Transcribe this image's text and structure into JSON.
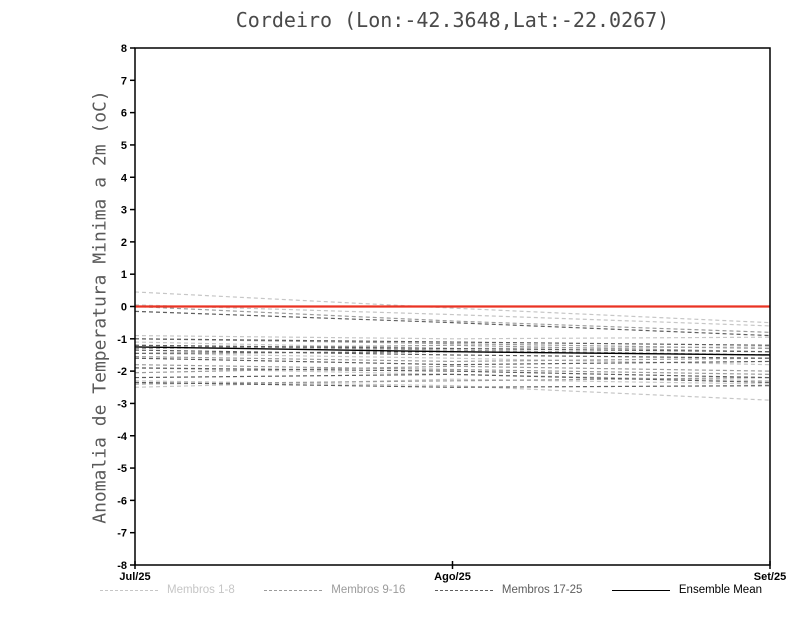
{
  "chart_data": {
    "type": "line",
    "title": "Cordeiro (Lon:-42.3648,Lat:-22.0267)",
    "ylabel": "Anomalia de Temperatura Minima a 2m (oC)",
    "xlabel": "",
    "ylim": [
      -8,
      8
    ],
    "ytick_step": 1,
    "x": [
      "Jul/25",
      "Ago/25",
      "Set/25"
    ],
    "grid": false,
    "legend_position": "bottom",
    "zero_line": {
      "value": 0,
      "color": "#ea3323"
    },
    "groups": [
      {
        "label": "Membros 1-8",
        "color": "#c6c6c6",
        "dash": "4 3",
        "series": [
          [
            0.45,
            -0.05,
            -0.5
          ],
          [
            0.05,
            -0.25,
            -0.6
          ],
          [
            -0.9,
            -1.0,
            -0.95
          ],
          [
            -1.1,
            -1.3,
            -1.25
          ],
          [
            -1.45,
            -1.6,
            -1.8
          ],
          [
            -1.9,
            -2.1,
            -2.3
          ],
          [
            -2.3,
            -2.45,
            -2.9
          ],
          [
            -2.5,
            -2.25,
            -2.4
          ]
        ]
      },
      {
        "label": "Membros 9-16",
        "color": "#9b9b9b",
        "dash": "4 3",
        "series": [
          [
            0.0,
            -0.45,
            -0.8
          ],
          [
            -1.0,
            -1.15,
            -1.3
          ],
          [
            -1.2,
            -1.35,
            -1.5
          ],
          [
            -1.3,
            -1.2,
            -1.4
          ],
          [
            -1.55,
            -1.7,
            -1.6
          ],
          [
            -1.8,
            -1.95,
            -2.1
          ],
          [
            -2.05,
            -1.85,
            -2.0
          ],
          [
            -2.4,
            -2.3,
            -2.2
          ]
        ]
      },
      {
        "label": "Membros 17-25",
        "color": "#5e5e5e",
        "dash": "4 3",
        "series": [
          [
            -0.15,
            -0.5,
            -0.9
          ],
          [
            -1.0,
            -1.1,
            -1.2
          ],
          [
            -1.2,
            -1.3,
            -1.4
          ],
          [
            -1.35,
            -1.5,
            -1.6
          ],
          [
            -1.45,
            -1.4,
            -1.5
          ],
          [
            -1.6,
            -1.8,
            -1.7
          ],
          [
            -1.9,
            -2.0,
            -2.2
          ],
          [
            -2.2,
            -2.1,
            -2.35
          ],
          [
            -2.35,
            -2.5,
            -2.45
          ]
        ]
      }
    ],
    "ensemble_mean": {
      "label": "Ensemble Mean",
      "color": "#000000",
      "values": [
        -1.25,
        -1.4,
        -1.5
      ]
    }
  }
}
